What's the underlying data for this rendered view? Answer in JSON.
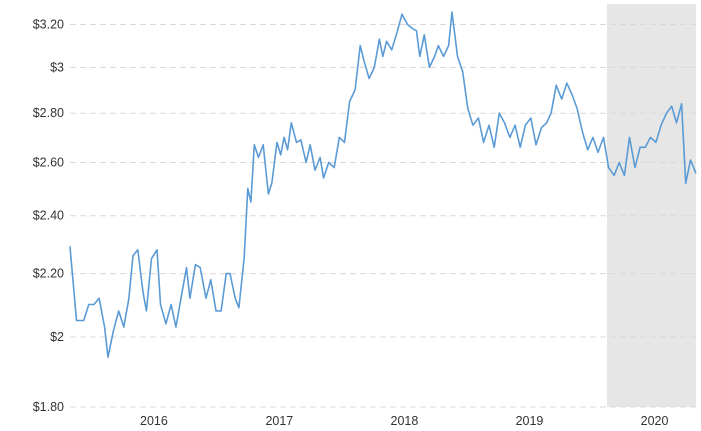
{
  "chart_data": {
    "type": "line",
    "title": "",
    "xlabel": "",
    "ylabel": "",
    "y_scale": "log",
    "ylim": [
      1.8,
      3.3
    ],
    "xlim": [
      "2015-05-01",
      "2020-05-01"
    ],
    "grid": true,
    "y_ticks": [
      {
        "value": 1.8,
        "label": "$1.80"
      },
      {
        "value": 2.0,
        "label": "$2"
      },
      {
        "value": 2.2,
        "label": "$2.20"
      },
      {
        "value": 2.4,
        "label": "$2.40"
      },
      {
        "value": 2.6,
        "label": "$2.60"
      },
      {
        "value": 2.8,
        "label": "$2.80"
      },
      {
        "value": 3.0,
        "label": "$3"
      },
      {
        "value": 3.2,
        "label": "$3.20"
      }
    ],
    "x_ticks": [
      {
        "value": "2016-01-01",
        "label": "2016"
      },
      {
        "value": "2017-01-01",
        "label": "2017"
      },
      {
        "value": "2018-01-01",
        "label": "2018"
      },
      {
        "value": "2019-01-01",
        "label": "2019"
      },
      {
        "value": "2020-01-01",
        "label": "2020"
      }
    ],
    "shaded_region": {
      "start": "2019-08-15",
      "end": "2020-05-01",
      "color": "#e6e6e6"
    },
    "series": [
      {
        "color": "#5b9bd5",
        "points": [
          [
            "2015-05-01",
            2.29
          ],
          [
            "2015-05-20",
            2.05
          ],
          [
            "2015-06-10",
            2.05
          ],
          [
            "2015-06-25",
            2.1
          ],
          [
            "2015-07-10",
            2.1
          ],
          [
            "2015-07-25",
            2.12
          ],
          [
            "2015-08-10",
            2.03
          ],
          [
            "2015-08-20",
            1.94
          ],
          [
            "2015-09-05",
            2.02
          ],
          [
            "2015-09-20",
            2.08
          ],
          [
            "2015-10-05",
            2.03
          ],
          [
            "2015-10-20",
            2.12
          ],
          [
            "2015-11-01",
            2.26
          ],
          [
            "2015-11-15",
            2.28
          ],
          [
            "2015-11-30",
            2.14
          ],
          [
            "2015-12-10",
            2.08
          ],
          [
            "2015-12-25",
            2.25
          ],
          [
            "2016-01-10",
            2.28
          ],
          [
            "2016-01-20",
            2.1
          ],
          [
            "2016-02-05",
            2.04
          ],
          [
            "2016-02-20",
            2.1
          ],
          [
            "2016-03-05",
            2.03
          ],
          [
            "2016-03-20",
            2.12
          ],
          [
            "2016-04-05",
            2.22
          ],
          [
            "2016-04-15",
            2.12
          ],
          [
            "2016-05-01",
            2.23
          ],
          [
            "2016-05-15",
            2.22
          ],
          [
            "2016-06-01",
            2.12
          ],
          [
            "2016-06-15",
            2.18
          ],
          [
            "2016-06-30",
            2.08
          ],
          [
            "2016-07-15",
            2.08
          ],
          [
            "2016-07-30",
            2.2
          ],
          [
            "2016-08-10",
            2.2
          ],
          [
            "2016-08-25",
            2.12
          ],
          [
            "2016-09-05",
            2.09
          ],
          [
            "2016-09-20",
            2.25
          ],
          [
            "2016-10-01",
            2.5
          ],
          [
            "2016-10-10",
            2.45
          ],
          [
            "2016-10-20",
            2.67
          ],
          [
            "2016-11-01",
            2.62
          ],
          [
            "2016-11-15",
            2.67
          ],
          [
            "2016-11-30",
            2.48
          ],
          [
            "2016-12-10",
            2.52
          ],
          [
            "2016-12-25",
            2.68
          ],
          [
            "2017-01-05",
            2.63
          ],
          [
            "2017-01-15",
            2.7
          ],
          [
            "2017-01-25",
            2.65
          ],
          [
            "2017-02-05",
            2.76
          ],
          [
            "2017-02-20",
            2.68
          ],
          [
            "2017-03-05",
            2.69
          ],
          [
            "2017-03-20",
            2.6
          ],
          [
            "2017-04-01",
            2.67
          ],
          [
            "2017-04-15",
            2.57
          ],
          [
            "2017-04-30",
            2.62
          ],
          [
            "2017-05-10",
            2.54
          ],
          [
            "2017-05-25",
            2.6
          ],
          [
            "2017-06-10",
            2.58
          ],
          [
            "2017-06-25",
            2.7
          ],
          [
            "2017-07-10",
            2.68
          ],
          [
            "2017-07-25",
            2.85
          ],
          [
            "2017-08-10",
            2.9
          ],
          [
            "2017-08-25",
            3.1
          ],
          [
            "2017-09-05",
            3.03
          ],
          [
            "2017-09-20",
            2.95
          ],
          [
            "2017-10-05",
            3.0
          ],
          [
            "2017-10-20",
            3.13
          ],
          [
            "2017-10-30",
            3.05
          ],
          [
            "2017-11-10",
            3.12
          ],
          [
            "2017-11-25",
            3.08
          ],
          [
            "2017-12-10",
            3.16
          ],
          [
            "2017-12-25",
            3.25
          ],
          [
            "2018-01-10",
            3.2
          ],
          [
            "2018-01-25",
            3.18
          ],
          [
            "2018-02-05",
            3.17
          ],
          [
            "2018-02-15",
            3.05
          ],
          [
            "2018-02-28",
            3.15
          ],
          [
            "2018-03-15",
            3.0
          ],
          [
            "2018-03-30",
            3.05
          ],
          [
            "2018-04-10",
            3.1
          ],
          [
            "2018-04-25",
            3.05
          ],
          [
            "2018-05-10",
            3.1
          ],
          [
            "2018-05-20",
            3.26
          ],
          [
            "2018-06-05",
            3.05
          ],
          [
            "2018-06-20",
            2.98
          ],
          [
            "2018-07-05",
            2.82
          ],
          [
            "2018-07-20",
            2.75
          ],
          [
            "2018-08-05",
            2.78
          ],
          [
            "2018-08-20",
            2.68
          ],
          [
            "2018-09-05",
            2.75
          ],
          [
            "2018-09-20",
            2.66
          ],
          [
            "2018-10-05",
            2.8
          ],
          [
            "2018-10-20",
            2.76
          ],
          [
            "2018-11-05",
            2.7
          ],
          [
            "2018-11-20",
            2.75
          ],
          [
            "2018-12-05",
            2.66
          ],
          [
            "2018-12-20",
            2.75
          ],
          [
            "2019-01-05",
            2.78
          ],
          [
            "2019-01-20",
            2.67
          ],
          [
            "2019-02-05",
            2.74
          ],
          [
            "2019-02-20",
            2.76
          ],
          [
            "2019-03-05",
            2.8
          ],
          [
            "2019-03-20",
            2.92
          ],
          [
            "2019-04-05",
            2.86
          ],
          [
            "2019-04-20",
            2.93
          ],
          [
            "2019-05-05",
            2.88
          ],
          [
            "2019-05-20",
            2.82
          ],
          [
            "2019-06-05",
            2.72
          ],
          [
            "2019-06-20",
            2.65
          ],
          [
            "2019-07-05",
            2.7
          ],
          [
            "2019-07-20",
            2.64
          ],
          [
            "2019-08-05",
            2.7
          ],
          [
            "2019-08-20",
            2.58
          ],
          [
            "2019-09-05",
            2.55
          ],
          [
            "2019-09-20",
            2.6
          ],
          [
            "2019-10-05",
            2.55
          ],
          [
            "2019-10-20",
            2.7
          ],
          [
            "2019-11-05",
            2.58
          ],
          [
            "2019-11-20",
            2.66
          ],
          [
            "2019-12-05",
            2.66
          ],
          [
            "2019-12-20",
            2.7
          ],
          [
            "2020-01-05",
            2.68
          ],
          [
            "2020-01-20",
            2.75
          ],
          [
            "2020-02-05",
            2.8
          ],
          [
            "2020-02-20",
            2.83
          ],
          [
            "2020-03-05",
            2.76
          ],
          [
            "2020-03-20",
            2.84
          ],
          [
            "2020-04-01",
            2.52
          ],
          [
            "2020-04-15",
            2.61
          ],
          [
            "2020-04-30",
            2.56
          ]
        ]
      }
    ]
  }
}
